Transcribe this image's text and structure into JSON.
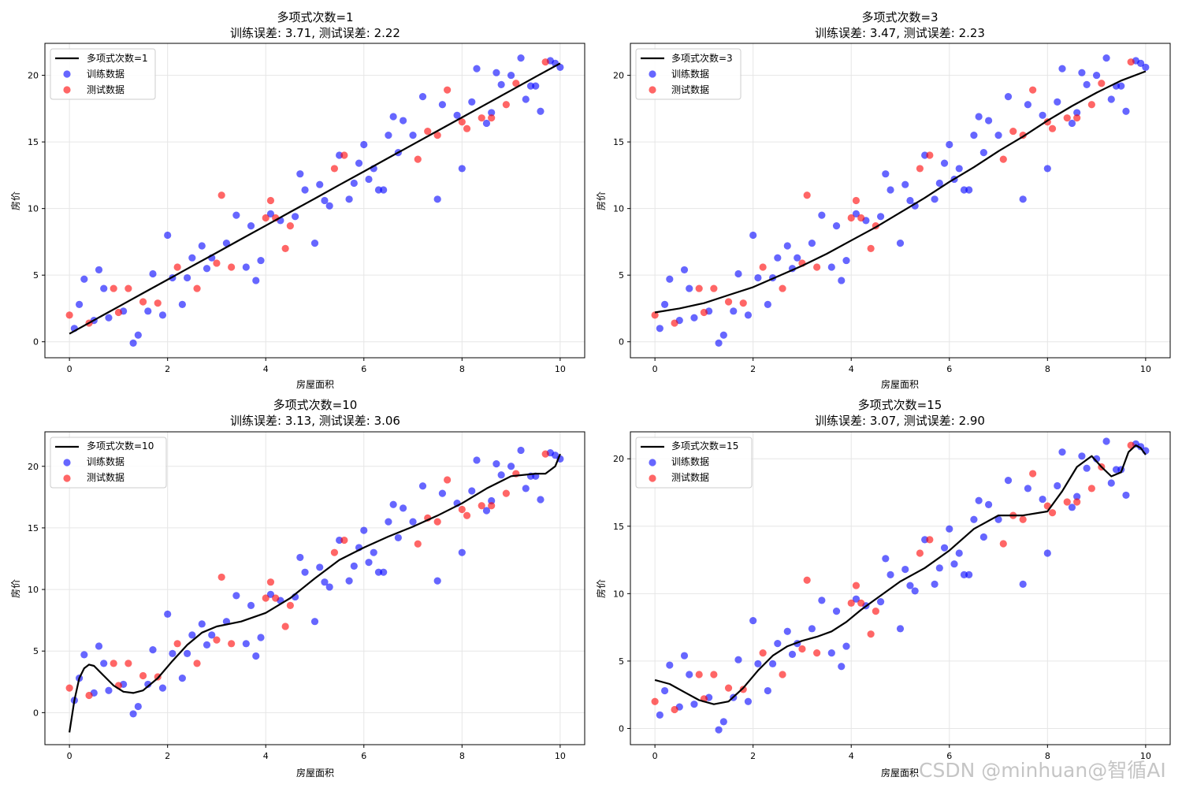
{
  "colors": {
    "train": "#0000ff",
    "test": "#ff0000",
    "fit": "#000000",
    "grid": "#e6e6e6"
  },
  "watermark": "CSDN @minhuan@智循AI",
  "chart_data": [
    {
      "type": "scatter",
      "title_line1": "多项式次数=1",
      "title_line2": "训练误差: 3.71, 测试误差: 2.22",
      "xlabel": "房屋面积",
      "ylabel": "房价",
      "xlim": [
        -0.5,
        10.5
      ],
      "ylim": [
        -1.2,
        22.4
      ],
      "xticks": [
        0,
        2,
        4,
        6,
        8,
        10
      ],
      "yticks": [
        0,
        5,
        10,
        15,
        20
      ],
      "legend": [
        "多项式次数=1",
        "训练数据",
        "测试数据"
      ],
      "fit_x": [
        0,
        0.5,
        1,
        1.5,
        2,
        2.5,
        3,
        3.5,
        4,
        4.5,
        5,
        5.5,
        6,
        6.5,
        7,
        7.5,
        8,
        8.5,
        9,
        9.5,
        10
      ],
      "fit_y": [
        0.6,
        1.62,
        2.63,
        3.65,
        4.66,
        5.68,
        6.69,
        7.71,
        8.72,
        9.74,
        10.75,
        11.77,
        12.78,
        13.8,
        14.81,
        15.83,
        16.84,
        17.86,
        18.87,
        19.89,
        20.9
      ]
    },
    {
      "type": "scatter",
      "title_line1": "多项式次数=3",
      "title_line2": "训练误差: 3.47, 测试误差: 2.23",
      "xlabel": "房屋面积",
      "ylabel": "房价",
      "xlim": [
        -0.5,
        10.5
      ],
      "ylim": [
        -1.2,
        22.4
      ],
      "xticks": [
        0,
        2,
        4,
        6,
        8,
        10
      ],
      "yticks": [
        0,
        5,
        10,
        15,
        20
      ],
      "legend": [
        "多项式次数=3",
        "训练数据",
        "测试数据"
      ],
      "fit_x": [
        0,
        0.5,
        1,
        1.5,
        2,
        2.5,
        3,
        3.5,
        4,
        4.5,
        5,
        5.5,
        6,
        6.5,
        7,
        7.5,
        8,
        8.5,
        9,
        9.5,
        10
      ],
      "fit_y": [
        2.2,
        2.5,
        2.9,
        3.5,
        4.1,
        4.9,
        5.7,
        6.6,
        7.6,
        8.6,
        9.7,
        10.8,
        12.0,
        13.1,
        14.3,
        15.4,
        16.6,
        17.7,
        18.7,
        19.6,
        20.3
      ]
    },
    {
      "type": "scatter",
      "title_line1": "多项式次数=10",
      "title_line2": "训练误差: 3.13, 测试误差: 3.06",
      "xlabel": "房屋面积",
      "ylabel": "房价",
      "xlim": [
        -0.5,
        10.5
      ],
      "ylim": [
        -2.6,
        22.8
      ],
      "xticks": [
        0,
        2,
        4,
        6,
        8,
        10
      ],
      "yticks": [
        0,
        5,
        10,
        15,
        20
      ],
      "legend": [
        "多项式次数=10",
        "训练数据",
        "测试数据"
      ],
      "fit_x": [
        0,
        0.1,
        0.2,
        0.3,
        0.4,
        0.5,
        0.7,
        0.9,
        1.1,
        1.3,
        1.5,
        1.8,
        2.1,
        2.4,
        2.7,
        3.0,
        3.5,
        4.0,
        4.5,
        5.0,
        5.5,
        6.0,
        6.5,
        7.0,
        7.5,
        8.0,
        8.5,
        9.0,
        9.5,
        9.7,
        9.9,
        10.0
      ],
      "fit_y": [
        -1.6,
        1.0,
        2.8,
        3.6,
        3.9,
        3.8,
        3.0,
        2.2,
        1.7,
        1.6,
        1.8,
        2.8,
        4.2,
        5.5,
        6.5,
        7.0,
        7.4,
        8.1,
        9.3,
        10.9,
        12.4,
        13.4,
        14.3,
        15.1,
        16.0,
        17.0,
        18.2,
        19.2,
        19.4,
        19.4,
        20.0,
        21.0
      ]
    },
    {
      "type": "scatter",
      "title_line1": "多项式次数=15",
      "title_line2": "训练误差: 3.07, 测试误差: 2.90",
      "xlabel": "房屋面积",
      "ylabel": "房价",
      "xlim": [
        -0.5,
        10.5
      ],
      "ylim": [
        -1.2,
        22.0
      ],
      "xticks": [
        0,
        2,
        4,
        6,
        8,
        10
      ],
      "yticks": [
        0,
        5,
        10,
        15,
        20
      ],
      "legend": [
        "多项式次数=15",
        "训练数据",
        "测试数据"
      ],
      "fit_x": [
        0,
        0.3,
        0.6,
        0.9,
        1.2,
        1.5,
        1.8,
        2.1,
        2.4,
        2.7,
        3.0,
        3.3,
        3.6,
        3.9,
        4.2,
        4.5,
        5.0,
        5.5,
        6.0,
        6.5,
        7.0,
        7.5,
        8.0,
        8.3,
        8.6,
        8.9,
        9.1,
        9.3,
        9.5,
        9.65,
        9.8,
        9.9,
        10.0
      ],
      "fit_y": [
        3.6,
        3.3,
        2.7,
        2.1,
        1.8,
        2.0,
        3.0,
        4.3,
        5.4,
        6.1,
        6.5,
        6.8,
        7.2,
        7.9,
        8.8,
        9.6,
        10.9,
        11.9,
        13.2,
        14.8,
        15.8,
        15.8,
        16.1,
        17.6,
        19.4,
        20.2,
        19.4,
        18.7,
        19.0,
        20.5,
        21.0,
        20.8,
        20.3
      ]
    }
  ],
  "train_points": [
    [
      0.1,
      1.0
    ],
    [
      0.2,
      2.8
    ],
    [
      0.3,
      4.7
    ],
    [
      0.5,
      1.6
    ],
    [
      0.6,
      5.4
    ],
    [
      0.7,
      4.0
    ],
    [
      0.8,
      1.8
    ],
    [
      1.1,
      2.3
    ],
    [
      1.3,
      -0.1
    ],
    [
      1.4,
      0.5
    ],
    [
      1.6,
      2.3
    ],
    [
      1.7,
      5.1
    ],
    [
      1.9,
      2.0
    ],
    [
      2.0,
      8.0
    ],
    [
      2.1,
      4.8
    ],
    [
      2.3,
      2.8
    ],
    [
      2.4,
      4.8
    ],
    [
      2.5,
      6.3
    ],
    [
      2.7,
      7.2
    ],
    [
      2.8,
      5.5
    ],
    [
      2.9,
      6.3
    ],
    [
      3.2,
      7.4
    ],
    [
      3.4,
      9.5
    ],
    [
      3.6,
      5.6
    ],
    [
      3.7,
      8.7
    ],
    [
      3.8,
      4.6
    ],
    [
      3.9,
      6.1
    ],
    [
      4.1,
      9.6
    ],
    [
      4.3,
      9.1
    ],
    [
      4.6,
      9.4
    ],
    [
      4.7,
      12.6
    ],
    [
      4.8,
      11.4
    ],
    [
      5.0,
      7.4
    ],
    [
      5.1,
      11.8
    ],
    [
      5.2,
      10.6
    ],
    [
      5.3,
      10.2
    ],
    [
      5.5,
      14.0
    ],
    [
      5.7,
      10.7
    ],
    [
      5.8,
      11.9
    ],
    [
      5.9,
      13.4
    ],
    [
      6.0,
      14.8
    ],
    [
      6.1,
      12.2
    ],
    [
      6.2,
      13.0
    ],
    [
      6.3,
      11.4
    ],
    [
      6.4,
      11.4
    ],
    [
      6.5,
      15.5
    ],
    [
      6.6,
      16.9
    ],
    [
      6.7,
      14.2
    ],
    [
      6.8,
      16.6
    ],
    [
      7.0,
      15.5
    ],
    [
      7.2,
      18.4
    ],
    [
      7.5,
      10.7
    ],
    [
      7.6,
      17.8
    ],
    [
      7.9,
      17.0
    ],
    [
      8.0,
      13.0
    ],
    [
      8.2,
      18.0
    ],
    [
      8.3,
      20.5
    ],
    [
      8.5,
      16.4
    ],
    [
      8.6,
      17.2
    ],
    [
      8.7,
      20.2
    ],
    [
      8.8,
      19.3
    ],
    [
      9.0,
      20.0
    ],
    [
      9.2,
      21.3
    ],
    [
      9.3,
      18.2
    ],
    [
      9.4,
      19.2
    ],
    [
      9.5,
      19.2
    ],
    [
      9.6,
      17.3
    ],
    [
      9.8,
      21.1
    ],
    [
      9.9,
      20.9
    ],
    [
      10.0,
      20.6
    ]
  ],
  "test_points": [
    [
      0.0,
      2.0
    ],
    [
      0.4,
      1.4
    ],
    [
      0.9,
      4.0
    ],
    [
      1.0,
      2.2
    ],
    [
      1.2,
      4.0
    ],
    [
      1.5,
      3.0
    ],
    [
      1.8,
      2.9
    ],
    [
      2.2,
      5.6
    ],
    [
      2.6,
      4.0
    ],
    [
      3.0,
      5.9
    ],
    [
      3.1,
      11.0
    ],
    [
      3.3,
      5.6
    ],
    [
      4.0,
      9.3
    ],
    [
      4.1,
      10.6
    ],
    [
      4.2,
      9.3
    ],
    [
      4.4,
      7.0
    ],
    [
      4.5,
      8.7
    ],
    [
      5.4,
      13.0
    ],
    [
      5.6,
      14.0
    ],
    [
      7.1,
      13.7
    ],
    [
      7.3,
      15.8
    ],
    [
      7.5,
      15.5
    ],
    [
      7.7,
      18.9
    ],
    [
      8.0,
      16.5
    ],
    [
      8.1,
      16.0
    ],
    [
      8.4,
      16.8
    ],
    [
      8.6,
      16.8
    ],
    [
      8.9,
      17.8
    ],
    [
      9.1,
      19.4
    ],
    [
      9.7,
      21.0
    ]
  ]
}
